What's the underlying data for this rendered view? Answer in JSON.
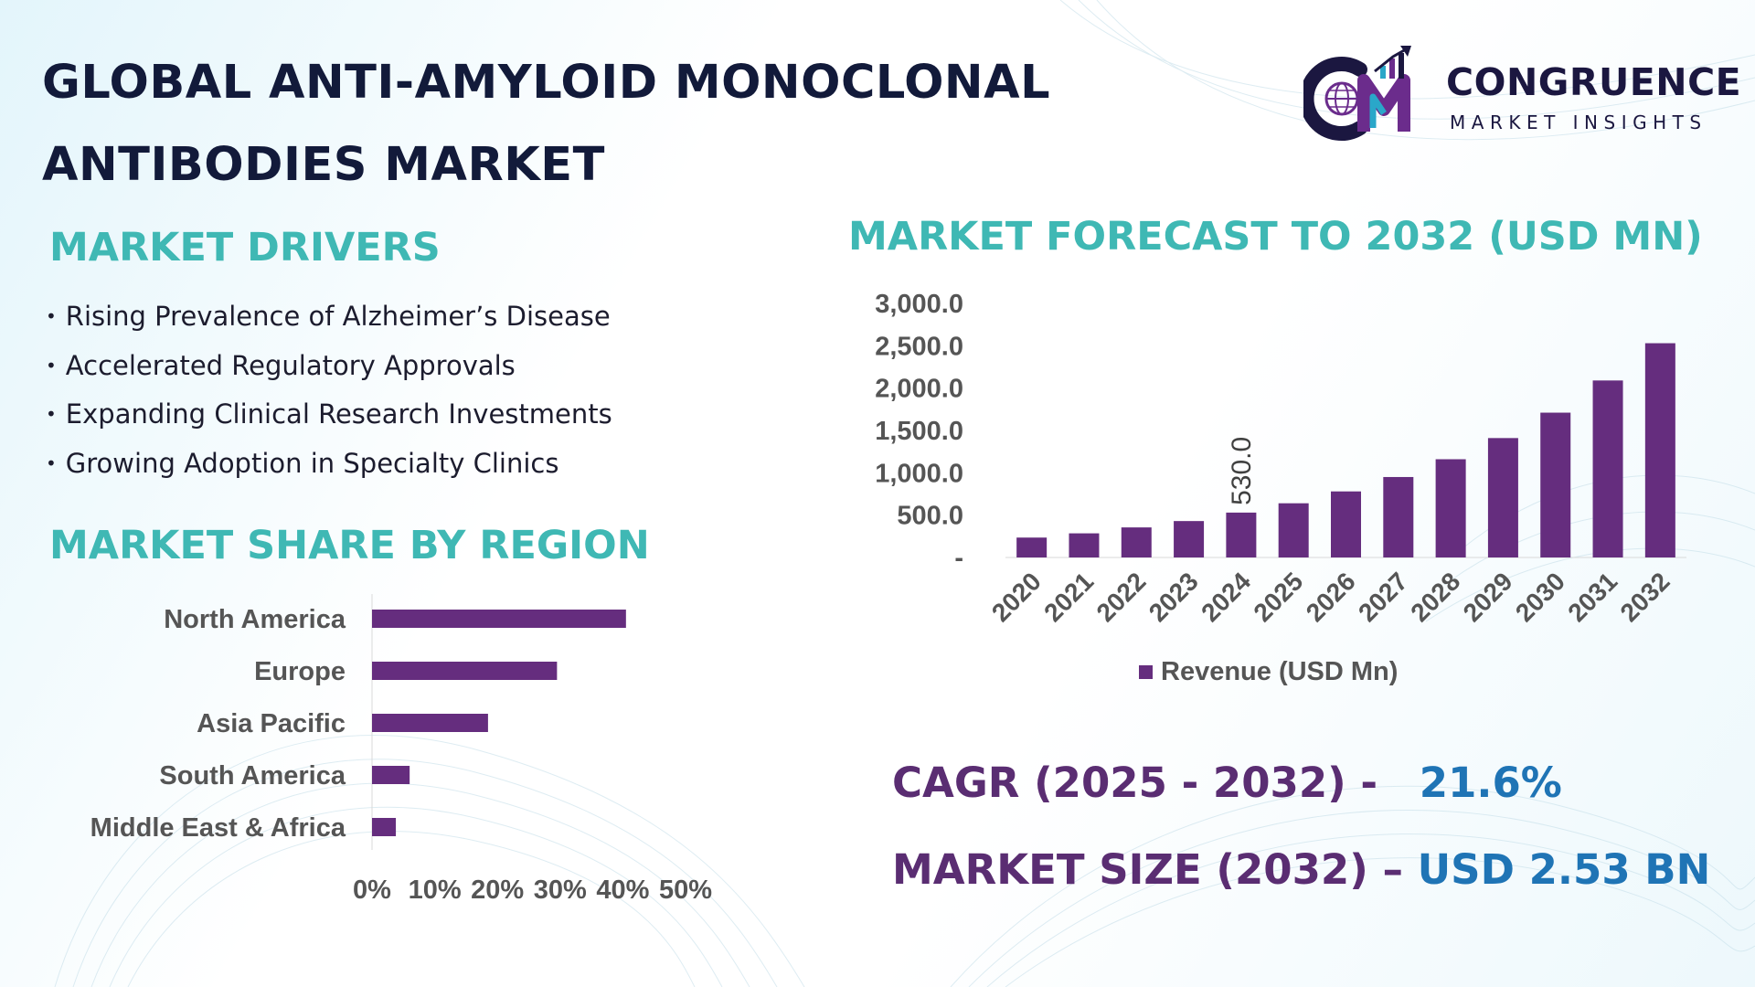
{
  "title": {
    "line1": "GLOBAL ANTI-AMYLOID MONOCLONAL",
    "line2": "ANTIBODIES MARKET"
  },
  "logo": {
    "name": "CONGRUENCE",
    "tagline": "MARKET INSIGHTS",
    "icon": "globe-cm-monogram-icon",
    "colors": [
      "#1b1740",
      "#6b2c8c",
      "#2aa7c9"
    ]
  },
  "drivers": {
    "heading": "MARKET DRIVERS",
    "items": [
      "Rising Prevalence of Alzheimer’s Disease",
      "Accelerated Regulatory Approvals",
      "Expanding Clinical Research Investments",
      "Growing Adoption in Specialty Clinics"
    ]
  },
  "region": {
    "heading": "MARKET SHARE BY REGION"
  },
  "forecast": {
    "heading": "MARKET FORECAST TO 2032 (USD MN)"
  },
  "stats": {
    "cagr_label": "CAGR (2025 - 2032) -",
    "cagr_value": "21.6%",
    "size_label": "MARKET SIZE (2032) –",
    "size_value": "USD 2.53 BN"
  },
  "colors": {
    "heading": "#3fb8b4",
    "title": "#121a3a",
    "bar": "#652d7e",
    "stat_label": "#5a2d72",
    "stat_value": "#1f74b5"
  },
  "chart_data": [
    {
      "type": "bar",
      "orientation": "horizontal",
      "categories": [
        "North America",
        "Europe",
        "Asia Pacific",
        "South America",
        "Middle East & Africa"
      ],
      "values": [
        40.5,
        29.5,
        18.5,
        6,
        3.8
      ],
      "value_unit": "%",
      "xlim": [
        0,
        50
      ],
      "xticks": [
        "0%",
        "10%",
        "20%",
        "30%",
        "40%",
        "50%"
      ],
      "grid": false
    },
    {
      "type": "bar",
      "categories": [
        "2020",
        "2021",
        "2022",
        "2023",
        "2024",
        "2025",
        "2026",
        "2027",
        "2028",
        "2029",
        "2030",
        "2031",
        "2032"
      ],
      "series": [
        {
          "name": "Revenue (USD Mn)",
          "values": [
            235,
            285,
            355,
            430,
            530,
            640,
            780,
            950,
            1160,
            1410,
            1710,
            2090,
            2530
          ]
        }
      ],
      "data_labels": [
        {
          "category": "2024",
          "text": "530.0"
        }
      ],
      "ylim": [
        0,
        3000
      ],
      "yticks": [
        "-",
        "500.0",
        "1,000.0",
        "1,500.0",
        "2,000.0",
        "2,500.0",
        "3,000.0"
      ],
      "legend": "bottom",
      "grid": false
    }
  ]
}
